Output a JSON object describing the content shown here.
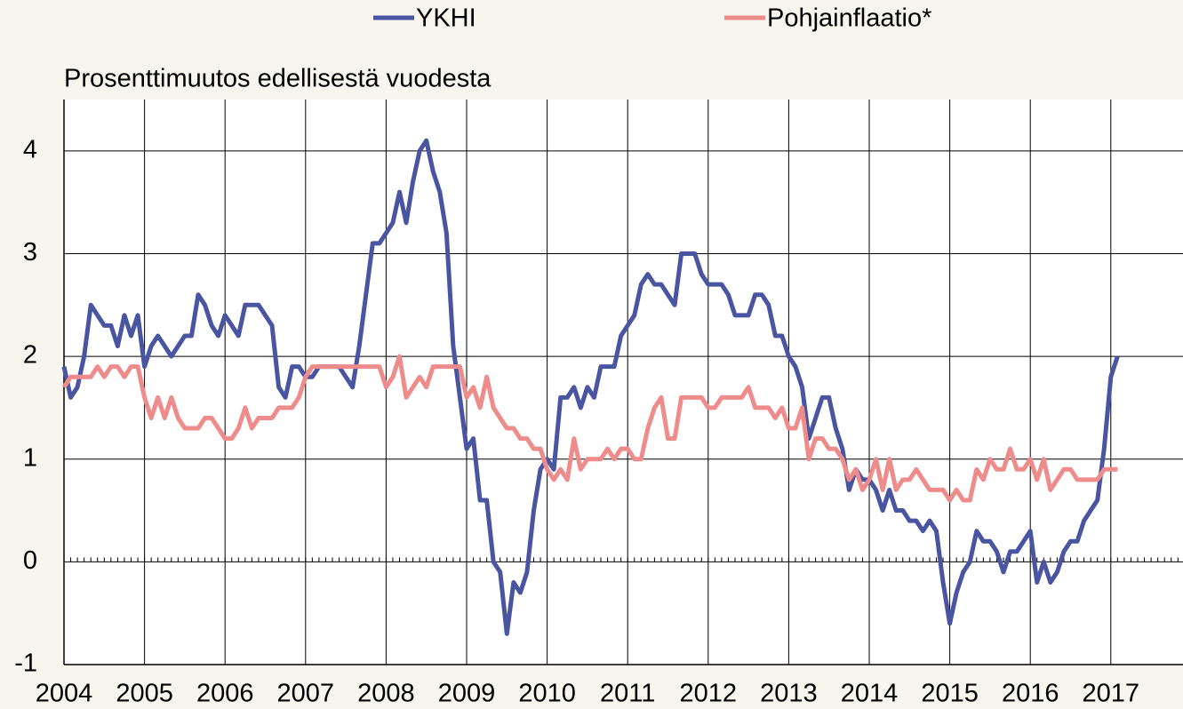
{
  "chart_data": {
    "type": "line",
    "subtitle": "Prosenttimuutos edellisestä vuodesta",
    "categories": [
      "2004",
      null,
      null,
      null,
      null,
      null,
      null,
      null,
      null,
      null,
      null,
      null,
      "2005",
      null,
      null,
      null,
      null,
      null,
      null,
      null,
      null,
      null,
      null,
      null,
      "2006",
      null,
      null,
      null,
      null,
      null,
      null,
      null,
      null,
      null,
      null,
      null,
      "2007",
      null,
      null,
      null,
      null,
      null,
      null,
      null,
      null,
      null,
      null,
      null,
      "2008",
      null,
      null,
      null,
      null,
      null,
      null,
      null,
      null,
      null,
      null,
      null,
      "2009",
      null,
      null,
      null,
      null,
      null,
      null,
      null,
      null,
      null,
      null,
      null,
      "2010",
      null,
      null,
      null,
      null,
      null,
      null,
      null,
      null,
      null,
      null,
      null,
      "2011",
      null,
      null,
      null,
      null,
      null,
      null,
      null,
      null,
      null,
      null,
      null,
      "2012",
      null,
      null,
      null,
      null,
      null,
      null,
      null,
      null,
      null,
      null,
      null,
      "2013",
      null,
      null,
      null,
      null,
      null,
      null,
      null,
      null,
      null,
      null,
      null,
      "2014",
      null,
      null,
      null,
      null,
      null,
      null,
      null,
      null,
      null,
      null,
      null,
      "2015",
      null,
      null,
      null,
      null,
      null,
      null,
      null,
      null,
      null,
      null,
      null,
      "2016",
      null,
      null,
      null,
      null,
      null,
      null,
      null,
      null,
      null,
      null,
      null,
      "2017",
      null
    ],
    "series": [
      {
        "name": "YKHI",
        "color": "#4a55a2",
        "values": [
          1.9,
          1.6,
          1.7,
          2.0,
          2.5,
          2.4,
          2.3,
          2.3,
          2.1,
          2.4,
          2.2,
          2.4,
          1.9,
          2.1,
          2.2,
          2.1,
          2.0,
          2.1,
          2.2,
          2.2,
          2.6,
          2.5,
          2.3,
          2.2,
          2.4,
          2.3,
          2.2,
          2.5,
          2.5,
          2.5,
          2.4,
          2.3,
          1.7,
          1.6,
          1.9,
          1.9,
          1.8,
          1.8,
          1.9,
          1.9,
          1.9,
          1.9,
          1.8,
          1.7,
          2.1,
          2.6,
          3.1,
          3.1,
          3.2,
          3.3,
          3.6,
          3.3,
          3.7,
          4.0,
          4.1,
          3.8,
          3.6,
          3.2,
          2.1,
          1.6,
          1.1,
          1.2,
          0.6,
          0.6,
          0.0,
          -0.1,
          -0.7,
          -0.2,
          -0.3,
          -0.1,
          0.5,
          0.9,
          1.0,
          0.9,
          1.6,
          1.6,
          1.7,
          1.5,
          1.7,
          1.6,
          1.9,
          1.9,
          1.9,
          2.2,
          2.3,
          2.4,
          2.7,
          2.8,
          2.7,
          2.7,
          2.6,
          2.5,
          3.0,
          3.0,
          3.0,
          2.8,
          2.7,
          2.7,
          2.7,
          2.6,
          2.4,
          2.4,
          2.4,
          2.6,
          2.6,
          2.5,
          2.2,
          2.2,
          2.0,
          1.9,
          1.7,
          1.2,
          1.4,
          1.6,
          1.6,
          1.3,
          1.1,
          0.7,
          0.9,
          0.8,
          0.8,
          0.7,
          0.5,
          0.7,
          0.5,
          0.5,
          0.4,
          0.4,
          0.3,
          0.4,
          0.3,
          -0.2,
          -0.6,
          -0.3,
          -0.1,
          0.0,
          0.3,
          0.2,
          0.2,
          0.1,
          -0.1,
          0.1,
          0.1,
          0.2,
          0.3,
          -0.2,
          0.0,
          -0.2,
          -0.1,
          0.1,
          0.2,
          0.2,
          0.4,
          0.5,
          0.6,
          1.1,
          1.8,
          2.0
        ]
      },
      {
        "name": "Pohjainflaatio*",
        "color": "#ee8c8c",
        "values": [
          1.7,
          1.8,
          1.8,
          1.8,
          1.8,
          1.9,
          1.8,
          1.9,
          1.9,
          1.8,
          1.9,
          1.9,
          1.6,
          1.4,
          1.6,
          1.4,
          1.6,
          1.4,
          1.3,
          1.3,
          1.3,
          1.4,
          1.4,
          1.3,
          1.2,
          1.2,
          1.3,
          1.5,
          1.3,
          1.4,
          1.4,
          1.4,
          1.5,
          1.5,
          1.5,
          1.6,
          1.8,
          1.9,
          1.9,
          1.9,
          1.9,
          1.9,
          1.9,
          1.9,
          1.9,
          1.9,
          1.9,
          1.9,
          1.7,
          1.8,
          2.0,
          1.6,
          1.7,
          1.8,
          1.7,
          1.9,
          1.9,
          1.9,
          1.9,
          1.9,
          1.6,
          1.7,
          1.5,
          1.8,
          1.5,
          1.4,
          1.3,
          1.3,
          1.2,
          1.2,
          1.1,
          1.1,
          0.9,
          0.8,
          0.9,
          0.8,
          1.2,
          0.9,
          1.0,
          1.0,
          1.0,
          1.1,
          1.0,
          1.1,
          1.1,
          1.0,
          1.0,
          1.3,
          1.5,
          1.6,
          1.2,
          1.2,
          1.6,
          1.6,
          1.6,
          1.6,
          1.5,
          1.5,
          1.6,
          1.6,
          1.6,
          1.6,
          1.7,
          1.5,
          1.5,
          1.5,
          1.4,
          1.5,
          1.3,
          1.3,
          1.5,
          1.0,
          1.2,
          1.2,
          1.1,
          1.1,
          1.0,
          0.8,
          0.9,
          0.7,
          0.8,
          1.0,
          0.7,
          1.0,
          0.7,
          0.8,
          0.8,
          0.9,
          0.8,
          0.7,
          0.7,
          0.7,
          0.6,
          0.7,
          0.6,
          0.6,
          0.9,
          0.8,
          1.0,
          0.9,
          0.9,
          1.1,
          0.9,
          0.9,
          1.0,
          0.8,
          1.0,
          0.7,
          0.8,
          0.9,
          0.9,
          0.8,
          0.8,
          0.8,
          0.8,
          0.9,
          0.9,
          0.9
        ]
      }
    ],
    "ylim": [
      -1,
      4.5
    ],
    "yticks": [
      -1,
      0,
      1,
      2,
      3,
      4
    ],
    "grid": true,
    "legend": "top"
  }
}
